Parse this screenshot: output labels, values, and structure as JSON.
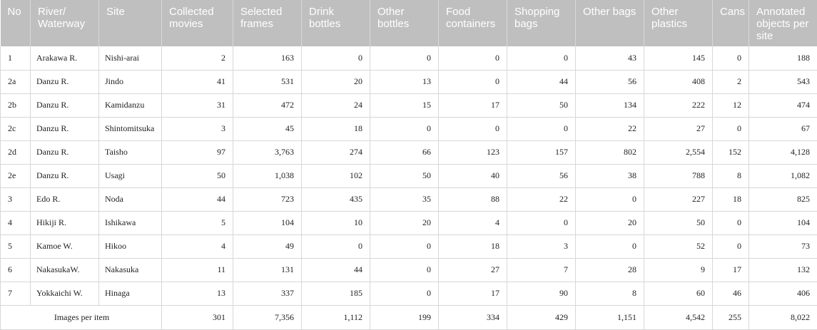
{
  "headers": [
    "No",
    "River/ Waterway",
    "Site",
    "Collected movies",
    "Selected frames",
    "Drink bottles",
    "Other bottles",
    "Food containers",
    "Shopping bags",
    "Other bags",
    "Other plastics",
    "Cans",
    "Annotated objects per site"
  ],
  "rows": [
    [
      "1",
      "Arakawa R.",
      "Nishi-arai",
      "2",
      "163",
      "0",
      "0",
      "0",
      "0",
      "43",
      "145",
      "0",
      "188"
    ],
    [
      "2a",
      "Danzu R.",
      "Jindo",
      "41",
      "531",
      "20",
      "13",
      "0",
      "44",
      "56",
      "408",
      "2",
      "543"
    ],
    [
      "2b",
      "Danzu R.",
      "Kamidanzu",
      "31",
      "472",
      "24",
      "15",
      "17",
      "50",
      "134",
      "222",
      "12",
      "474"
    ],
    [
      "2c",
      "Danzu R.",
      "Shintomitsuka",
      "3",
      "45",
      "18",
      "0",
      "0",
      "0",
      "22",
      "27",
      "0",
      "67"
    ],
    [
      "2d",
      "Danzu R.",
      "Taisho",
      "97",
      "3,763",
      "274",
      "66",
      "123",
      "157",
      "802",
      "2,554",
      "152",
      "4,128"
    ],
    [
      "2e",
      "Danzu R.",
      "Usagi",
      "50",
      "1,038",
      "102",
      "50",
      "40",
      "56",
      "38",
      "788",
      "8",
      "1,082"
    ],
    [
      "3",
      "Edo R.",
      "Noda",
      "44",
      "723",
      "435",
      "35",
      "88",
      "22",
      "0",
      "227",
      "18",
      "825"
    ],
    [
      "4",
      "Hikiji R.",
      "Ishikawa",
      "5",
      "104",
      "10",
      "20",
      "4",
      "0",
      "20",
      "50",
      "0",
      "104"
    ],
    [
      "5",
      "Kamoe W.",
      "Hikoo",
      "4",
      "49",
      "0",
      "0",
      "18",
      "3",
      "0",
      "52",
      "0",
      "73"
    ],
    [
      "6",
      "NakasukaW.",
      "Nakasuka",
      "11",
      "131",
      "44",
      "0",
      "27",
      "7",
      "28",
      "9",
      "17",
      "132"
    ],
    [
      "7",
      "Yokkaichi W.",
      "Hinaga",
      "13",
      "337",
      "185",
      "0",
      "17",
      "90",
      "8",
      "60",
      "46",
      "406"
    ]
  ],
  "total": {
    "label": "Images per item",
    "values": [
      "301",
      "7,356",
      "1,112",
      "199",
      "334",
      "429",
      "1,151",
      "4,542",
      "255",
      "8,022"
    ]
  }
}
